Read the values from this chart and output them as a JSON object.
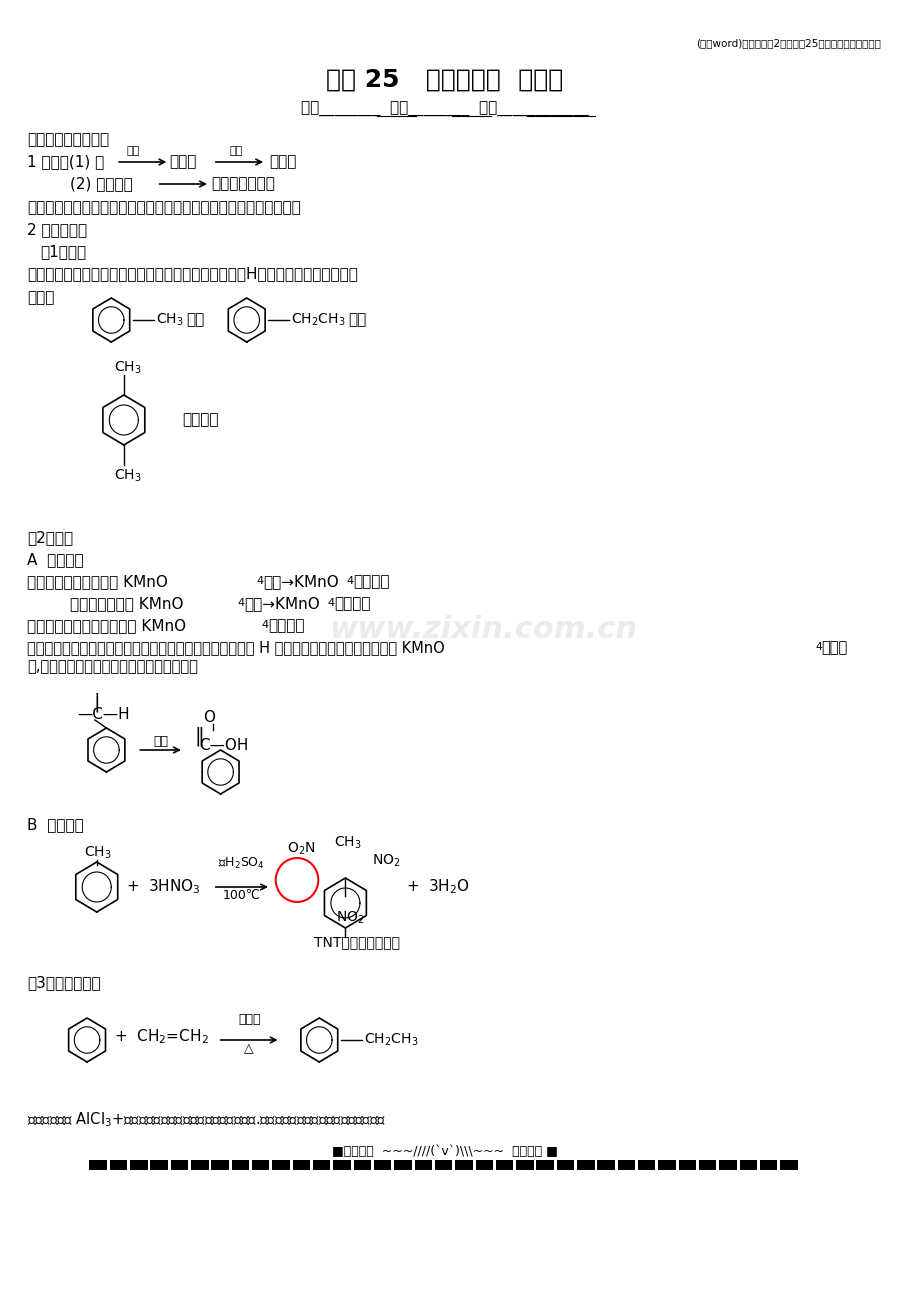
{
  "bg_color": "#ffffff",
  "text_color": "#000000",
  "title_header": "(完整word)苏教版必修2学案课时25《苯的同系物芳香烃》",
  "title_main": "课时 25   苯的同系物  芳香烃",
  "subtitle": "班级________  学号________  姓名____________",
  "watermark": "www.zixin.com.cn"
}
